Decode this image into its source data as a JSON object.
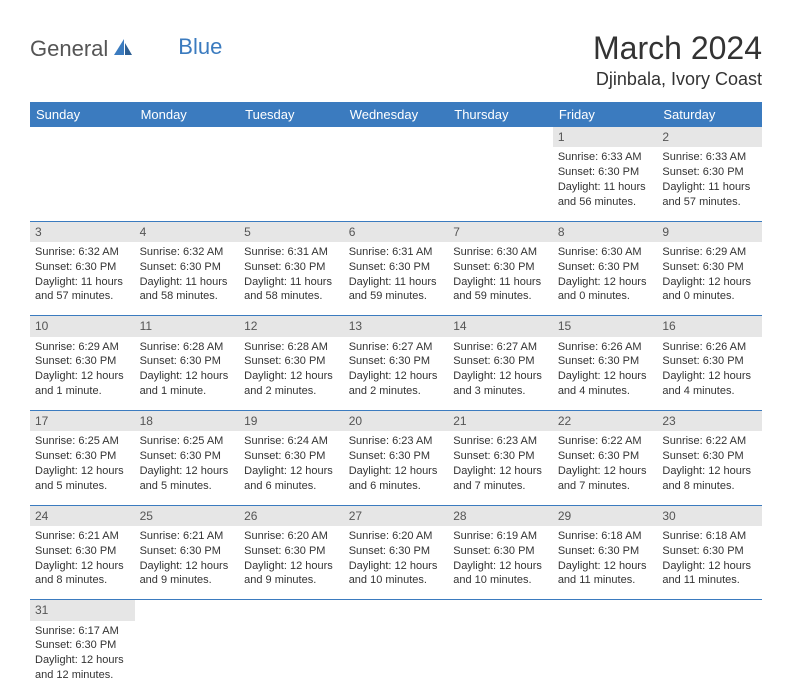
{
  "logo": {
    "text1": "General",
    "text2": "Blue"
  },
  "title": "March 2024",
  "location": "Djinbala, Ivory Coast",
  "colors": {
    "header_bg": "#3b7bbf",
    "header_text": "#ffffff",
    "daynum_bg": "#e6e6e6",
    "rule": "#3b7bbf",
    "text": "#333333"
  },
  "weekdays": [
    "Sunday",
    "Monday",
    "Tuesday",
    "Wednesday",
    "Thursday",
    "Friday",
    "Saturday"
  ],
  "weeks": [
    [
      null,
      null,
      null,
      null,
      null,
      {
        "n": "1",
        "sunrise": "Sunrise: 6:33 AM",
        "sunset": "Sunset: 6:30 PM",
        "daylight": "Daylight: 11 hours and 56 minutes."
      },
      {
        "n": "2",
        "sunrise": "Sunrise: 6:33 AM",
        "sunset": "Sunset: 6:30 PM",
        "daylight": "Daylight: 11 hours and 57 minutes."
      }
    ],
    [
      {
        "n": "3",
        "sunrise": "Sunrise: 6:32 AM",
        "sunset": "Sunset: 6:30 PM",
        "daylight": "Daylight: 11 hours and 57 minutes."
      },
      {
        "n": "4",
        "sunrise": "Sunrise: 6:32 AM",
        "sunset": "Sunset: 6:30 PM",
        "daylight": "Daylight: 11 hours and 58 minutes."
      },
      {
        "n": "5",
        "sunrise": "Sunrise: 6:31 AM",
        "sunset": "Sunset: 6:30 PM",
        "daylight": "Daylight: 11 hours and 58 minutes."
      },
      {
        "n": "6",
        "sunrise": "Sunrise: 6:31 AM",
        "sunset": "Sunset: 6:30 PM",
        "daylight": "Daylight: 11 hours and 59 minutes."
      },
      {
        "n": "7",
        "sunrise": "Sunrise: 6:30 AM",
        "sunset": "Sunset: 6:30 PM",
        "daylight": "Daylight: 11 hours and 59 minutes."
      },
      {
        "n": "8",
        "sunrise": "Sunrise: 6:30 AM",
        "sunset": "Sunset: 6:30 PM",
        "daylight": "Daylight: 12 hours and 0 minutes."
      },
      {
        "n": "9",
        "sunrise": "Sunrise: 6:29 AM",
        "sunset": "Sunset: 6:30 PM",
        "daylight": "Daylight: 12 hours and 0 minutes."
      }
    ],
    [
      {
        "n": "10",
        "sunrise": "Sunrise: 6:29 AM",
        "sunset": "Sunset: 6:30 PM",
        "daylight": "Daylight: 12 hours and 1 minute."
      },
      {
        "n": "11",
        "sunrise": "Sunrise: 6:28 AM",
        "sunset": "Sunset: 6:30 PM",
        "daylight": "Daylight: 12 hours and 1 minute."
      },
      {
        "n": "12",
        "sunrise": "Sunrise: 6:28 AM",
        "sunset": "Sunset: 6:30 PM",
        "daylight": "Daylight: 12 hours and 2 minutes."
      },
      {
        "n": "13",
        "sunrise": "Sunrise: 6:27 AM",
        "sunset": "Sunset: 6:30 PM",
        "daylight": "Daylight: 12 hours and 2 minutes."
      },
      {
        "n": "14",
        "sunrise": "Sunrise: 6:27 AM",
        "sunset": "Sunset: 6:30 PM",
        "daylight": "Daylight: 12 hours and 3 minutes."
      },
      {
        "n": "15",
        "sunrise": "Sunrise: 6:26 AM",
        "sunset": "Sunset: 6:30 PM",
        "daylight": "Daylight: 12 hours and 4 minutes."
      },
      {
        "n": "16",
        "sunrise": "Sunrise: 6:26 AM",
        "sunset": "Sunset: 6:30 PM",
        "daylight": "Daylight: 12 hours and 4 minutes."
      }
    ],
    [
      {
        "n": "17",
        "sunrise": "Sunrise: 6:25 AM",
        "sunset": "Sunset: 6:30 PM",
        "daylight": "Daylight: 12 hours and 5 minutes."
      },
      {
        "n": "18",
        "sunrise": "Sunrise: 6:25 AM",
        "sunset": "Sunset: 6:30 PM",
        "daylight": "Daylight: 12 hours and 5 minutes."
      },
      {
        "n": "19",
        "sunrise": "Sunrise: 6:24 AM",
        "sunset": "Sunset: 6:30 PM",
        "daylight": "Daylight: 12 hours and 6 minutes."
      },
      {
        "n": "20",
        "sunrise": "Sunrise: 6:23 AM",
        "sunset": "Sunset: 6:30 PM",
        "daylight": "Daylight: 12 hours and 6 minutes."
      },
      {
        "n": "21",
        "sunrise": "Sunrise: 6:23 AM",
        "sunset": "Sunset: 6:30 PM",
        "daylight": "Daylight: 12 hours and 7 minutes."
      },
      {
        "n": "22",
        "sunrise": "Sunrise: 6:22 AM",
        "sunset": "Sunset: 6:30 PM",
        "daylight": "Daylight: 12 hours and 7 minutes."
      },
      {
        "n": "23",
        "sunrise": "Sunrise: 6:22 AM",
        "sunset": "Sunset: 6:30 PM",
        "daylight": "Daylight: 12 hours and 8 minutes."
      }
    ],
    [
      {
        "n": "24",
        "sunrise": "Sunrise: 6:21 AM",
        "sunset": "Sunset: 6:30 PM",
        "daylight": "Daylight: 12 hours and 8 minutes."
      },
      {
        "n": "25",
        "sunrise": "Sunrise: 6:21 AM",
        "sunset": "Sunset: 6:30 PM",
        "daylight": "Daylight: 12 hours and 9 minutes."
      },
      {
        "n": "26",
        "sunrise": "Sunrise: 6:20 AM",
        "sunset": "Sunset: 6:30 PM",
        "daylight": "Daylight: 12 hours and 9 minutes."
      },
      {
        "n": "27",
        "sunrise": "Sunrise: 6:20 AM",
        "sunset": "Sunset: 6:30 PM",
        "daylight": "Daylight: 12 hours and 10 minutes."
      },
      {
        "n": "28",
        "sunrise": "Sunrise: 6:19 AM",
        "sunset": "Sunset: 6:30 PM",
        "daylight": "Daylight: 12 hours and 10 minutes."
      },
      {
        "n": "29",
        "sunrise": "Sunrise: 6:18 AM",
        "sunset": "Sunset: 6:30 PM",
        "daylight": "Daylight: 12 hours and 11 minutes."
      },
      {
        "n": "30",
        "sunrise": "Sunrise: 6:18 AM",
        "sunset": "Sunset: 6:30 PM",
        "daylight": "Daylight: 12 hours and 11 minutes."
      }
    ],
    [
      {
        "n": "31",
        "sunrise": "Sunrise: 6:17 AM",
        "sunset": "Sunset: 6:30 PM",
        "daylight": "Daylight: 12 hours and 12 minutes."
      },
      null,
      null,
      null,
      null,
      null,
      null
    ]
  ]
}
